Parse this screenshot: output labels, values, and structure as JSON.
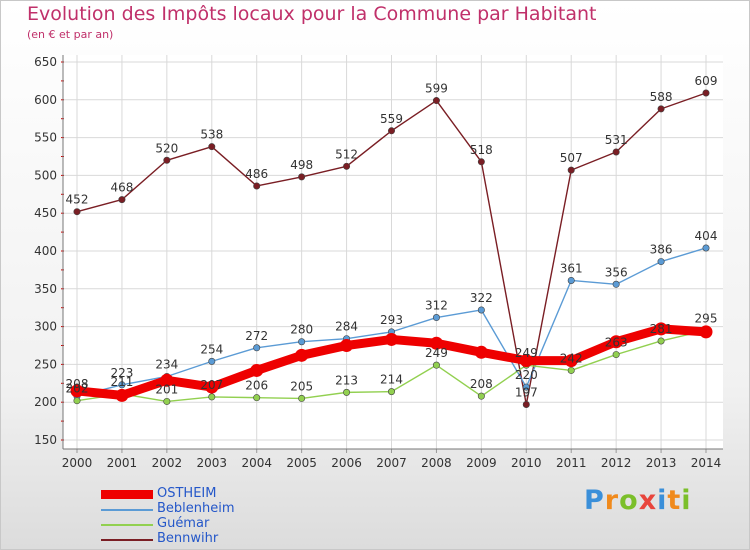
{
  "header": {
    "title": "Evolution des Impôts locaux pour la Commune par Habitant",
    "subtitle": "(en € et par an)"
  },
  "logo": {
    "text": "Proxiti",
    "letters": [
      "P",
      "r",
      "o",
      "x",
      "i",
      "t",
      "i"
    ],
    "letter_colors": [
      "#3a8fd9",
      "#f08a1c",
      "#7bbf2a",
      "#e8453c",
      "#3a8fd9",
      "#f08a1c",
      "#7bbf2a"
    ]
  },
  "colors": {
    "title": "#c0306a",
    "tick_text": "#333333",
    "grid": "#d9d9d9",
    "legend_text": "#2457c9"
  },
  "chart_data": {
    "type": "line",
    "title": "Evolution des Impôts locaux pour la Commune par Habitant",
    "subtitle": "(en € et par an)",
    "x": [
      "2000",
      "2001",
      "2002",
      "2003",
      "2004",
      "2005",
      "2006",
      "2007",
      "2008",
      "2009",
      "2010",
      "2011",
      "2012",
      "2013",
      "2014"
    ],
    "ylim": [
      150,
      650
    ],
    "yticks": [
      150,
      200,
      250,
      300,
      350,
      400,
      450,
      500,
      550,
      600,
      650
    ],
    "grid": true,
    "legend_position": "bottom-left",
    "series": [
      {
        "name": "OSTHEIM",
        "color": "#ee0000",
        "values": [
          215,
          209,
          229,
          220,
          242,
          262,
          275,
          283,
          278,
          266,
          255,
          255,
          280,
          297,
          293
        ],
        "labels": false
      },
      {
        "name": "Beblenheim",
        "color": "#5b9bd5",
        "values": [
          208,
          223,
          234,
          254,
          272,
          280,
          284,
          293,
          312,
          322,
          220,
          361,
          356,
          386,
          404
        ],
        "labels": true
      },
      {
        "name": "Guémar",
        "color": "#92d050",
        "values": [
          202,
          211,
          201,
          207,
          206,
          205,
          213,
          214,
          249,
          208,
          249,
          242,
          263,
          281,
          295
        ],
        "labels": true
      },
      {
        "name": "Bennwihr",
        "color": "#7a1e24",
        "values": [
          452,
          468,
          520,
          538,
          486,
          498,
          512,
          559,
          599,
          518,
          197,
          507,
          531,
          588,
          609
        ],
        "labels": true
      }
    ]
  }
}
